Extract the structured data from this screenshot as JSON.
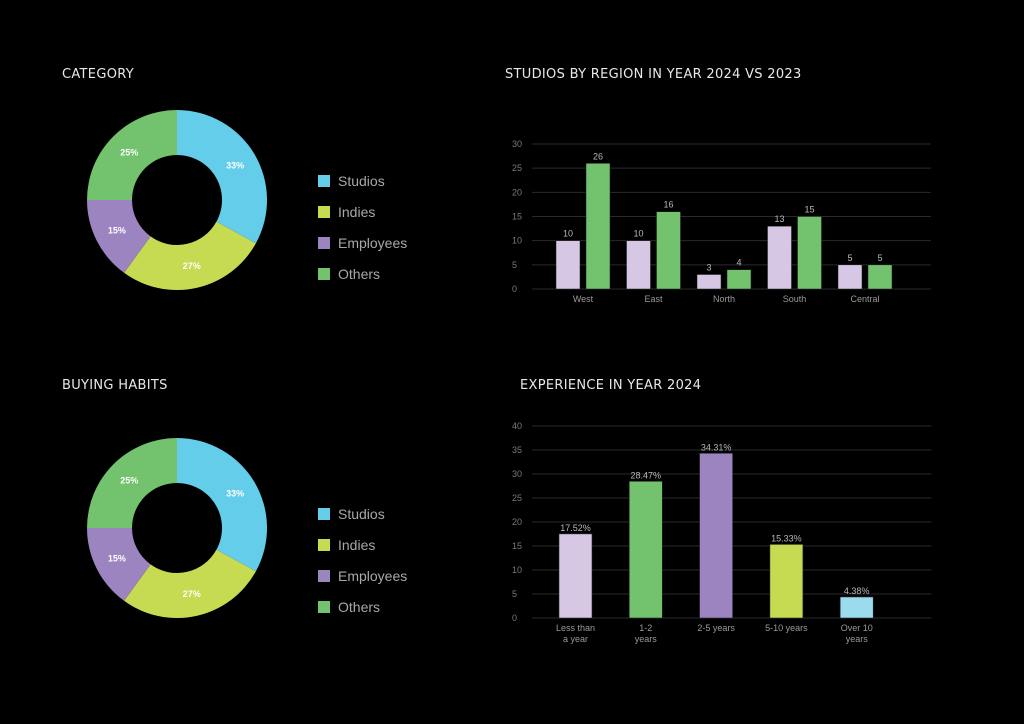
{
  "colors": {
    "background": "#000000",
    "studios": "#64CDE9",
    "indies": "#C7DB52",
    "employees": "#9B84C0",
    "others": "#72C26E",
    "lavender": "#D6C8E4",
    "light_blue": "#9ADCEE",
    "gridline": "#2a2a2a"
  },
  "chart_data": [
    {
      "id": "category",
      "type": "pie",
      "title": "CATEGORY",
      "donut": true,
      "labels": [
        "Studios",
        "Indies",
        "Employees",
        "Others"
      ],
      "values": [
        33,
        27,
        15,
        25
      ],
      "value_labels": [
        "33%",
        "27%",
        "15%",
        "25%"
      ],
      "colors": [
        "#64CDE9",
        "#C7DB52",
        "#9B84C0",
        "#72C26E"
      ],
      "legend": "right"
    },
    {
      "id": "studios_by_region",
      "type": "bar",
      "title": "STUDIOS BY REGION IN YEAR 2024 VS 2023",
      "categories": [
        "West",
        "East",
        "North",
        "South",
        "Central"
      ],
      "series": [
        {
          "name": "2023",
          "color": "#D6C8E4",
          "values": [
            10,
            10,
            3,
            13,
            5
          ]
        },
        {
          "name": "2024",
          "color": "#72C26E",
          "values": [
            26,
            16,
            4,
            15,
            5
          ]
        }
      ],
      "yticks": [
        0,
        5,
        10,
        15,
        20,
        25,
        30
      ],
      "ylim": [
        0,
        30
      ],
      "xlabel": "",
      "ylabel": "",
      "grid": true
    },
    {
      "id": "buying_habits",
      "type": "pie",
      "title": "BUYING HABITS",
      "donut": true,
      "labels": [
        "Studios",
        "Indies",
        "Employees",
        "Others"
      ],
      "values": [
        33,
        27,
        15,
        25
      ],
      "value_labels": [
        "33%",
        "27%",
        "15%",
        "25%"
      ],
      "colors": [
        "#64CDE9",
        "#C7DB52",
        "#9B84C0",
        "#72C26E"
      ],
      "legend": "right"
    },
    {
      "id": "experience",
      "type": "bar",
      "title": "EXPERIENCE IN YEAR 2024",
      "categories": [
        [
          "Less than",
          "a year"
        ],
        [
          "1-2",
          "years"
        ],
        [
          "2-5 years"
        ],
        [
          "5-10 years"
        ],
        [
          "Over 10",
          "years"
        ]
      ],
      "values": [
        17.52,
        28.47,
        34.31,
        15.33,
        4.38
      ],
      "value_labels": [
        "17.52%",
        "28.47%",
        "34.31%",
        "15.33%",
        "4.38%"
      ],
      "colors": [
        "#D6C8E4",
        "#72C26E",
        "#9B84C0",
        "#C7DB52",
        "#9ADCEE"
      ],
      "yticks": [
        0,
        5,
        10,
        15,
        20,
        25,
        30,
        35,
        40
      ],
      "ylim": [
        0,
        40
      ],
      "xlabel": "",
      "ylabel": "",
      "grid": true
    }
  ]
}
